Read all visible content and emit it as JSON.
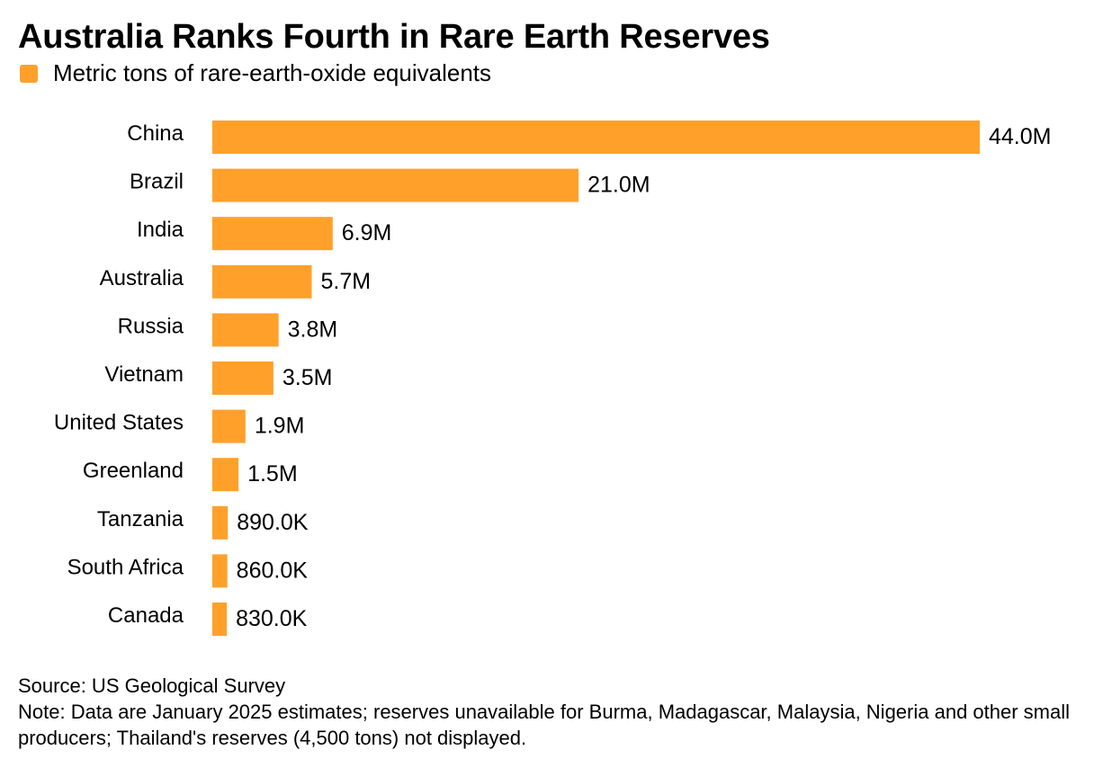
{
  "header": {
    "title": "Australia Ranks Fourth in Rare Earth Reserves"
  },
  "legend": {
    "label": "Metric tons of rare-earth-oxide equivalents",
    "color": "#FFA02B"
  },
  "chart_data": {
    "type": "bar",
    "orientation": "horizontal",
    "title": "Australia Ranks Fourth in Rare Earth Reserves",
    "categories": [
      "China",
      "Brazil",
      "India",
      "Australia",
      "Russia",
      "Vietnam",
      "United States",
      "Greenland",
      "Tanzania",
      "South Africa",
      "Canada"
    ],
    "series": [
      {
        "name": "Metric tons of rare-earth-oxide equivalents",
        "color": "#FFA02B",
        "values": [
          44000000,
          21000000,
          6900000,
          5700000,
          3800000,
          3500000,
          1900000,
          1500000,
          890000,
          860000,
          830000
        ],
        "labels": [
          "44.0M",
          "21.0M",
          "6.9M",
          "5.7M",
          "3.8M",
          "3.5M",
          "1.9M",
          "1.5M",
          "890.0K",
          "860.0K",
          "830.0K"
        ]
      }
    ],
    "xlim": [
      0,
      44000000
    ],
    "grid": false,
    "legend_position": "top-left"
  },
  "footer": {
    "source": "Source: US Geological Survey",
    "note": "Note: Data are January 2025 estimates; reserves unavailable for Burma, Madagascar, Malaysia, Nigeria and other small producers; Thailand's reserves (4,500 tons) not displayed."
  }
}
